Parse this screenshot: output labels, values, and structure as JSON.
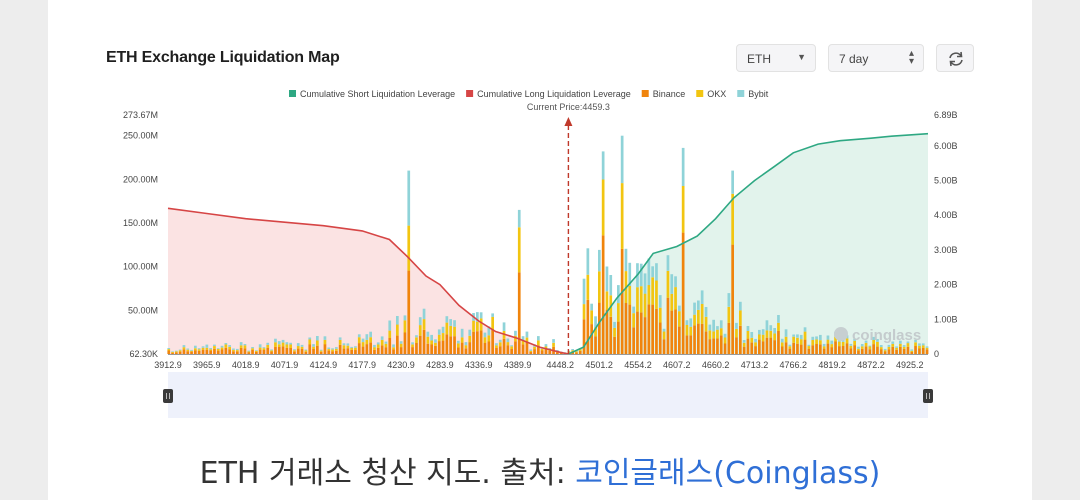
{
  "page": {
    "title": "ETH Exchange Liquidation Map",
    "coin_select": "ETH",
    "range_select": "7 day",
    "caption_prefix": "ETH 거래소 청산 지도. 출처: ",
    "caption_link": "코인글래스(Coinglass)",
    "watermark": "coinglass"
  },
  "colors": {
    "short": "#2ea883",
    "long": "#d64545",
    "binance": "#f0840c",
    "okx": "#f2c511",
    "bybit": "#8fd3d8"
  },
  "chart_data": {
    "type": "bar",
    "title": "ETH Exchange Liquidation Map",
    "current_price_label": "Current Price:4459.3",
    "current_price": 4459.3,
    "legend": [
      "Cumulative Short Liquidation Leverage",
      "Cumulative Long Liquidation Leverage",
      "Binance",
      "OKX",
      "Bybit"
    ],
    "x_range": [
      3912.9,
      4950
    ],
    "x_ticks": [
      "3912.9",
      "3965.9",
      "4018.9",
      "4071.9",
      "4124.9",
      "4177.9",
      "4230.9",
      "4283.9",
      "4336.9",
      "4389.9",
      "4448.2",
      "4501.2",
      "4554.2",
      "4607.2",
      "4660.2",
      "4713.2",
      "4766.2",
      "4819.2",
      "4872.2",
      "4925.2"
    ],
    "y_left_ticks": [
      "273.67M",
      "250.00M",
      "200.00M",
      "150.00M",
      "100.00M",
      "50.00M",
      "62.30K"
    ],
    "y_left_values": [
      273.67,
      250,
      200,
      150,
      100,
      50,
      0.0623
    ],
    "y_left_range": [
      0,
      273.67
    ],
    "y_right_ticks": [
      "6.89B",
      "6.00B",
      "5.00B",
      "4.00B",
      "3.00B",
      "2.00B",
      "1.00B",
      "0"
    ],
    "y_right_values": [
      6.89,
      6,
      5,
      4,
      3,
      2,
      1,
      0
    ],
    "y_right_range": [
      0,
      6.89
    ],
    "cumulative_long_B": [
      [
        3912.9,
        4.2
      ],
      [
        3965.9,
        4.05
      ],
      [
        4018.9,
        3.9
      ],
      [
        4071.9,
        3.8
      ],
      [
        4124.9,
        3.7
      ],
      [
        4177.9,
        3.55
      ],
      [
        4215,
        3.3
      ],
      [
        4240,
        2.8
      ],
      [
        4265,
        2.25
      ],
      [
        4283.9,
        2.0
      ],
      [
        4310,
        1.4
      ],
      [
        4336.9,
        0.95
      ],
      [
        4360,
        0.65
      ],
      [
        4389.9,
        0.45
      ],
      [
        4420,
        0.2
      ],
      [
        4448.2,
        0.05
      ],
      [
        4459.3,
        0
      ]
    ],
    "cumulative_short_B": [
      [
        4459.3,
        0
      ],
      [
        4480,
        0.2
      ],
      [
        4501.2,
        0.9
      ],
      [
        4525,
        1.6
      ],
      [
        4554.2,
        2.3
      ],
      [
        4575,
        2.9
      ],
      [
        4607.2,
        3.1
      ],
      [
        4635,
        3.4
      ],
      [
        4660.2,
        3.9
      ],
      [
        4685,
        4.5
      ],
      [
        4713.2,
        5.0
      ],
      [
        4740,
        5.4
      ],
      [
        4766.2,
        5.8
      ],
      [
        4800,
        6.05
      ],
      [
        4830,
        6.15
      ],
      [
        4872.2,
        6.22
      ],
      [
        4900,
        6.28
      ],
      [
        4950,
        6.35
      ]
    ],
    "notable_bars_M": [
      {
        "price": 4239,
        "total": 210
      },
      {
        "price": 4390,
        "total": 165
      },
      {
        "price": 4506,
        "total": 232
      },
      {
        "price": 4531,
        "total": 250
      },
      {
        "price": 4616,
        "total": 236
      },
      {
        "price": 4682,
        "total": 210
      }
    ]
  }
}
